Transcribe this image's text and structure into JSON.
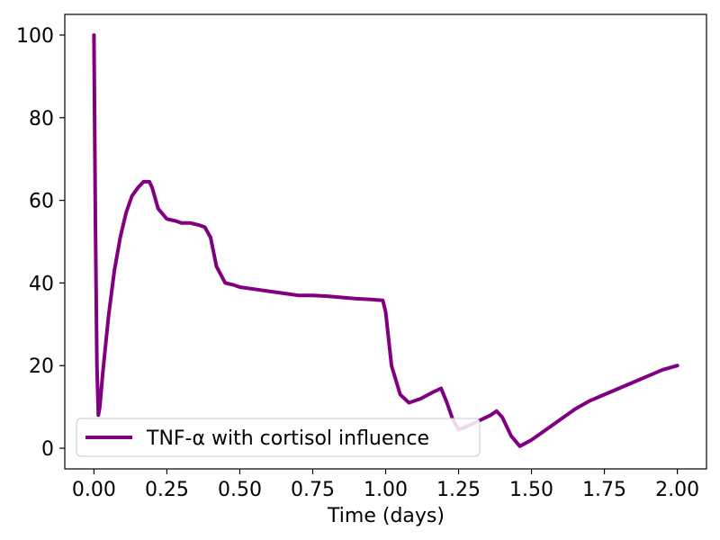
{
  "chart_data": {
    "type": "line",
    "title": "",
    "xlabel": "Time (days)",
    "ylabel": "",
    "xlim": [
      -0.1,
      2.1
    ],
    "ylim": [
      -5,
      105
    ],
    "xticks": [
      0.0,
      0.25,
      0.5,
      0.75,
      1.0,
      1.25,
      1.5,
      1.75,
      2.0
    ],
    "xtick_labels": [
      "0.00",
      "0.25",
      "0.50",
      "0.75",
      "1.00",
      "1.25",
      "1.50",
      "1.75",
      "2.00"
    ],
    "yticks": [
      0,
      20,
      40,
      60,
      80,
      100
    ],
    "ytick_labels": [
      "0",
      "20",
      "40",
      "60",
      "80",
      "100"
    ],
    "grid": false,
    "legend_position": "lower-left",
    "series": [
      {
        "name": "TNF-α with cortisol influence",
        "color": "#800080",
        "x": [
          0.0,
          0.005,
          0.01,
          0.015,
          0.02,
          0.03,
          0.05,
          0.07,
          0.09,
          0.11,
          0.13,
          0.15,
          0.17,
          0.19,
          0.2,
          0.22,
          0.25,
          0.28,
          0.3,
          0.33,
          0.36,
          0.38,
          0.4,
          0.42,
          0.45,
          0.48,
          0.5,
          0.55,
          0.6,
          0.65,
          0.7,
          0.75,
          0.8,
          0.85,
          0.9,
          0.95,
          0.99,
          1.0,
          1.02,
          1.05,
          1.08,
          1.12,
          1.16,
          1.19,
          1.21,
          1.23,
          1.25,
          1.27,
          1.3,
          1.33,
          1.36,
          1.38,
          1.4,
          1.43,
          1.46,
          1.5,
          1.55,
          1.6,
          1.65,
          1.7,
          1.75,
          1.8,
          1.85,
          1.9,
          1.95,
          2.0
        ],
        "y": [
          100,
          55,
          20,
          8,
          10,
          18,
          32,
          43,
          51,
          57,
          61,
          63,
          64.5,
          64.5,
          63,
          58,
          55.5,
          55,
          54.5,
          54.5,
          54,
          53.5,
          51,
          44,
          40,
          39.5,
          39,
          38.5,
          38,
          37.5,
          37,
          37,
          36.8,
          36.5,
          36.2,
          36,
          35.8,
          33,
          20,
          13,
          11,
          12,
          13.5,
          14.5,
          11,
          7,
          4.5,
          5,
          6,
          7,
          8,
          9,
          7.5,
          3,
          0.5,
          2,
          4.5,
          7,
          9.5,
          11.5,
          13,
          14.5,
          16,
          17.5,
          19,
          20
        ]
      }
    ]
  }
}
